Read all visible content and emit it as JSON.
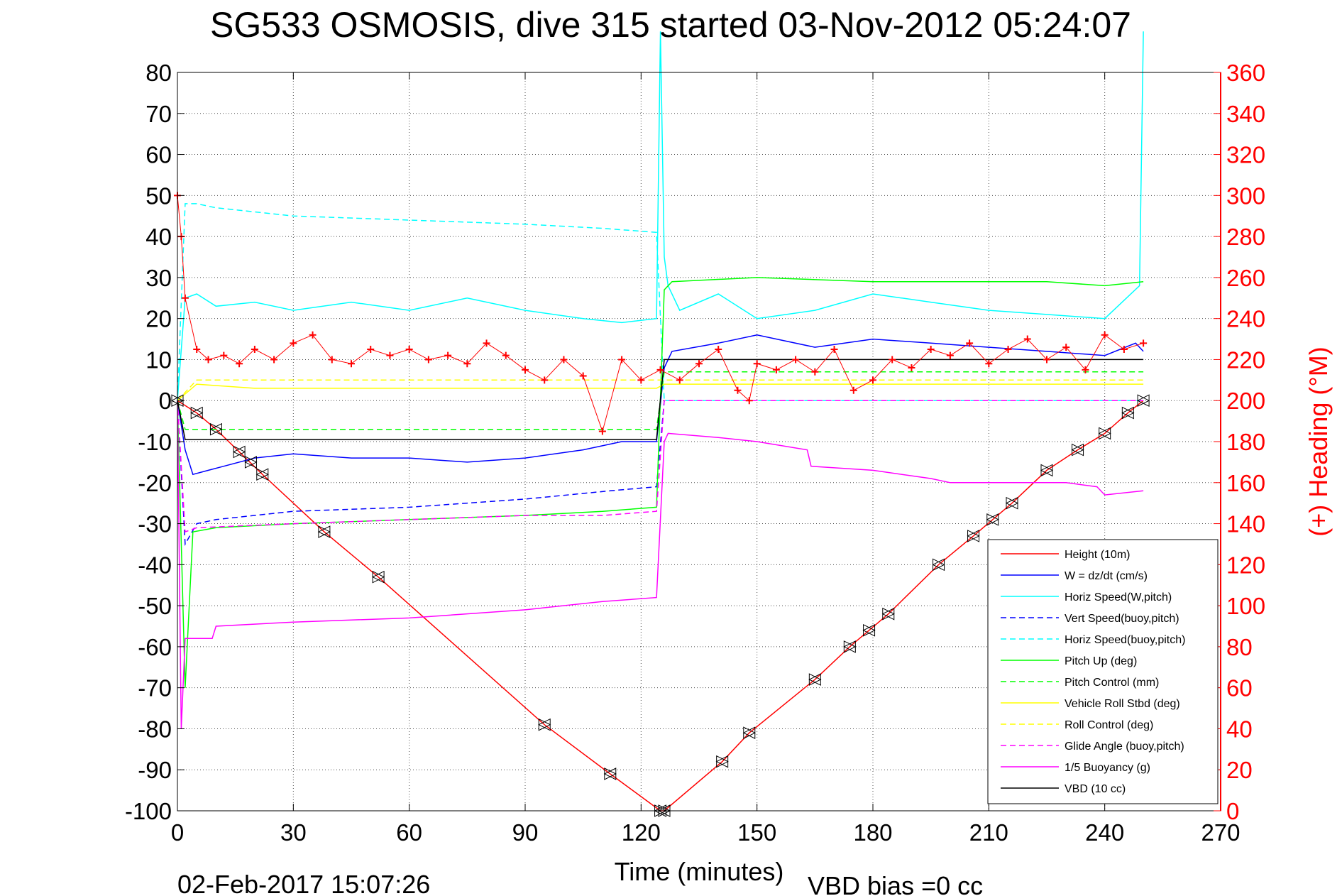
{
  "chart_data": {
    "type": "line",
    "title": "SG533 OSMOSIS, dive 315 started 03-Nov-2012 05:24:07",
    "xlabel": "Time (minutes)",
    "ylabel_right": "(+) Heading (°M)",
    "footer_left": "02-Feb-2017 15:07:26",
    "footer_right": "VBD bias =0 cc",
    "xlim": [
      0,
      270
    ],
    "ylim": [
      -100,
      80
    ],
    "y2lim": [
      0,
      360
    ],
    "x_ticks": [
      0,
      30,
      60,
      90,
      120,
      150,
      180,
      210,
      240,
      270
    ],
    "y_ticks": [
      80,
      70,
      60,
      50,
      40,
      30,
      20,
      10,
      0,
      -10,
      -20,
      -30,
      -40,
      -50,
      -60,
      -70,
      -80,
      -90,
      -100
    ],
    "y2_ticks": [
      360,
      340,
      320,
      300,
      280,
      260,
      240,
      220,
      200,
      180,
      160,
      140,
      120,
      100,
      80,
      60,
      40,
      20,
      0
    ],
    "grid": true,
    "legend_position": "bottom-right",
    "colors": {
      "height": "#ff0000",
      "w": "#0000ff",
      "cyan": "#00ffff",
      "green": "#00ff00",
      "yellow": "#ffff00",
      "magenta": "#ff00ff",
      "black": "#000000",
      "heading": "#ff0000"
    },
    "legend": [
      {
        "label": "Height (10m)",
        "color": "#ff0000",
        "dash": false
      },
      {
        "label": "W = dz/dt (cm/s)",
        "color": "#0000ff",
        "dash": false
      },
      {
        "label": "Horiz Speed(W,pitch)",
        "color": "#00ffff",
        "dash": false
      },
      {
        "label": "Vert Speed(buoy,pitch)",
        "color": "#0000ff",
        "dash": true
      },
      {
        "label": "Horiz Speed(buoy,pitch)",
        "color": "#00ffff",
        "dash": true
      },
      {
        "label": "Pitch Up (deg)",
        "color": "#00ff00",
        "dash": false
      },
      {
        "label": "Pitch Control (mm)",
        "color": "#00ff00",
        "dash": true
      },
      {
        "label": "Vehicle Roll Stbd (deg)",
        "color": "#ffff00",
        "dash": false
      },
      {
        "label": "Roll Control (deg)",
        "color": "#ffff00",
        "dash": true
      },
      {
        "label": "Glide Angle (buoy,pitch)",
        "color": "#ff00ff",
        "dash": true
      },
      {
        "label": "1/5 Buoyancy (g)",
        "color": "#ff00ff",
        "dash": false
      },
      {
        "label": "VBD (10 cc)",
        "color": "#000000",
        "dash": false
      }
    ],
    "series": [
      {
        "name": "Height (10m)",
        "color": "#ff0000",
        "dash": false,
        "x": [
          0,
          5,
          10,
          16,
          22,
          38,
          52,
          95,
          112,
          125,
          126,
          141,
          148,
          165,
          174,
          179,
          184,
          197,
          206,
          211,
          216,
          225,
          233,
          240,
          246,
          250
        ],
        "y": [
          0,
          -3,
          -7,
          -12.5,
          -18,
          -32,
          -43,
          -79,
          -91,
          -100,
          -100,
          -88,
          -81,
          -68,
          -60,
          -56,
          -52,
          -40,
          -33,
          -29,
          -25,
          -17,
          -12,
          -8,
          -3,
          0
        ]
      },
      {
        "name": "W = dz/dt (cm/s)",
        "color": "#0000ff",
        "dash": false,
        "x": [
          0,
          2,
          4,
          8,
          12,
          20,
          30,
          45,
          60,
          75,
          90,
          105,
          115,
          124,
          126,
          128,
          140,
          150,
          165,
          180,
          195,
          210,
          225,
          240,
          248,
          250
        ],
        "y": [
          0,
          -12,
          -18,
          -17,
          -16,
          -14,
          -13,
          -14,
          -14,
          -15,
          -14,
          -12,
          -10,
          -10,
          8,
          12,
          14,
          16,
          13,
          15,
          14,
          13,
          12,
          11,
          14,
          12
        ]
      },
      {
        "name": "Horiz Speed(W,pitch)",
        "color": "#00ffff",
        "dash": false,
        "x": [
          0,
          2,
          5,
          10,
          20,
          30,
          45,
          60,
          75,
          90,
          105,
          115,
          124,
          125,
          126,
          127,
          130,
          140,
          150,
          165,
          180,
          195,
          210,
          225,
          240,
          249,
          250
        ],
        "y": [
          0,
          25,
          26,
          23,
          24,
          22,
          24,
          22,
          25,
          22,
          20,
          19,
          20,
          90,
          35,
          28,
          22,
          26,
          20,
          22,
          26,
          24,
          22,
          21,
          20,
          28,
          90
        ]
      },
      {
        "name": "Vert Speed(buoy,pitch)",
        "color": "#0000ff",
        "dash": true,
        "x": [
          0,
          2,
          5,
          10,
          30,
          60,
          90,
          112,
          124,
          126,
          250
        ],
        "y": [
          0,
          -35,
          -30,
          -29,
          -27,
          -26,
          -24,
          -22,
          -21,
          0,
          0
        ]
      },
      {
        "name": "Horiz Speed(buoy,pitch)",
        "color": "#00ffff",
        "dash": true,
        "x": [
          0,
          2,
          5,
          10,
          30,
          60,
          90,
          110,
          124,
          126,
          250
        ],
        "y": [
          0,
          48,
          48,
          47,
          45,
          44,
          43,
          42,
          41,
          0,
          0
        ]
      },
      {
        "name": "Pitch Up (deg)",
        "color": "#00ff00",
        "dash": false,
        "x": [
          0,
          2,
          4,
          10,
          30,
          60,
          90,
          110,
          124,
          126,
          128,
          150,
          180,
          210,
          225,
          240,
          250
        ],
        "y": [
          0,
          -70,
          -32,
          -31,
          -30,
          -29,
          -28,
          -27,
          -26,
          27,
          29,
          30,
          29,
          29,
          29,
          28,
          29
        ]
      },
      {
        "name": "Pitch Control (mm)",
        "color": "#00ff00",
        "dash": true,
        "x": [
          0,
          2,
          10,
          60,
          124,
          126,
          250
        ],
        "y": [
          0,
          -7,
          -7,
          -7,
          -7,
          7,
          7
        ]
      },
      {
        "name": "Vehicle Roll Stbd (deg)",
        "color": "#ffff00",
        "dash": false,
        "x": [
          0,
          5,
          20,
          40,
          60,
          80,
          95,
          110,
          124,
          126,
          150,
          180,
          210,
          240,
          250
        ],
        "y": [
          0,
          4,
          3,
          3,
          3,
          3,
          3,
          3,
          3,
          4,
          4,
          4,
          4,
          4,
          4
        ]
      },
      {
        "name": "Roll Control (deg)",
        "color": "#ffff00",
        "dash": true,
        "x": [
          0,
          5,
          124,
          126,
          250
        ],
        "y": [
          0,
          5,
          5,
          5,
          5
        ]
      },
      {
        "name": "Glide Angle (buoy,pitch)",
        "color": "#ff00ff",
        "dash": true,
        "x": [
          0,
          2,
          5,
          30,
          60,
          90,
          110,
          124,
          126,
          250
        ],
        "y": [
          0,
          -32,
          -31,
          -30,
          -29,
          -28,
          -28,
          -27,
          0,
          0
        ]
      },
      {
        "name": "1/5 Buoyancy (g)",
        "color": "#ff00ff",
        "dash": false,
        "x": [
          0,
          1,
          2,
          3,
          9,
          10,
          30,
          60,
          90,
          110,
          124,
          126,
          127,
          140,
          150,
          163,
          164,
          180,
          195,
          200,
          210,
          230,
          238,
          240,
          250
        ],
        "y": [
          0,
          -80,
          -58,
          -58,
          -58,
          -55,
          -54,
          -53,
          -51,
          -49,
          -48,
          -10,
          -8,
          -9,
          -10,
          -12,
          -16,
          -17,
          -19,
          -20,
          -20,
          -20,
          -21,
          -23,
          -22
        ]
      },
      {
        "name": "VBD (10 cc)",
        "color": "#000000",
        "dash": false,
        "x": [
          0,
          2,
          124,
          126,
          250
        ],
        "y": [
          0,
          -9.5,
          -9.5,
          10,
          10
        ]
      },
      {
        "name": "(+) Heading (°M)",
        "color": "#ff0000",
        "axis": "right",
        "marker": "+",
        "x": [
          0,
          1,
          2,
          5,
          8,
          12,
          16,
          20,
          25,
          30,
          35,
          40,
          45,
          50,
          55,
          60,
          65,
          70,
          75,
          80,
          85,
          90,
          95,
          100,
          105,
          110,
          115,
          120,
          125,
          130,
          135,
          140,
          145,
          148,
          150,
          155,
          160,
          165,
          170,
          175,
          180,
          185,
          190,
          195,
          200,
          205,
          210,
          215,
          220,
          225,
          230,
          235,
          240,
          245,
          250
        ],
        "y": [
          300,
          280,
          250,
          225,
          220,
          222,
          218,
          225,
          220,
          228,
          232,
          220,
          218,
          225,
          222,
          225,
          220,
          222,
          218,
          228,
          222,
          215,
          210,
          220,
          212,
          185,
          220,
          210,
          215,
          210,
          218,
          225,
          205,
          200,
          218,
          215,
          220,
          214,
          225,
          205,
          210,
          220,
          216,
          225,
          222,
          228,
          218,
          225,
          230,
          220,
          226,
          215,
          232,
          225,
          228
        ]
      }
    ],
    "markers": {
      "shape": "triangle",
      "x": [
        0,
        5,
        10,
        16,
        19,
        22,
        38,
        52,
        95,
        112,
        125,
        126,
        141,
        148,
        165,
        174,
        179,
        184,
        197,
        206,
        211,
        216,
        225,
        233,
        240,
        246,
        250
      ],
      "y": [
        0,
        -3,
        -7,
        -12.5,
        -15,
        -18,
        -32,
        -43,
        -79,
        -91,
        -100,
        -100,
        -88,
        -81,
        -68,
        -60,
        -56,
        -52,
        -40,
        -33,
        -29,
        -25,
        -17,
        -12,
        -8,
        -3,
        0
      ]
    }
  }
}
